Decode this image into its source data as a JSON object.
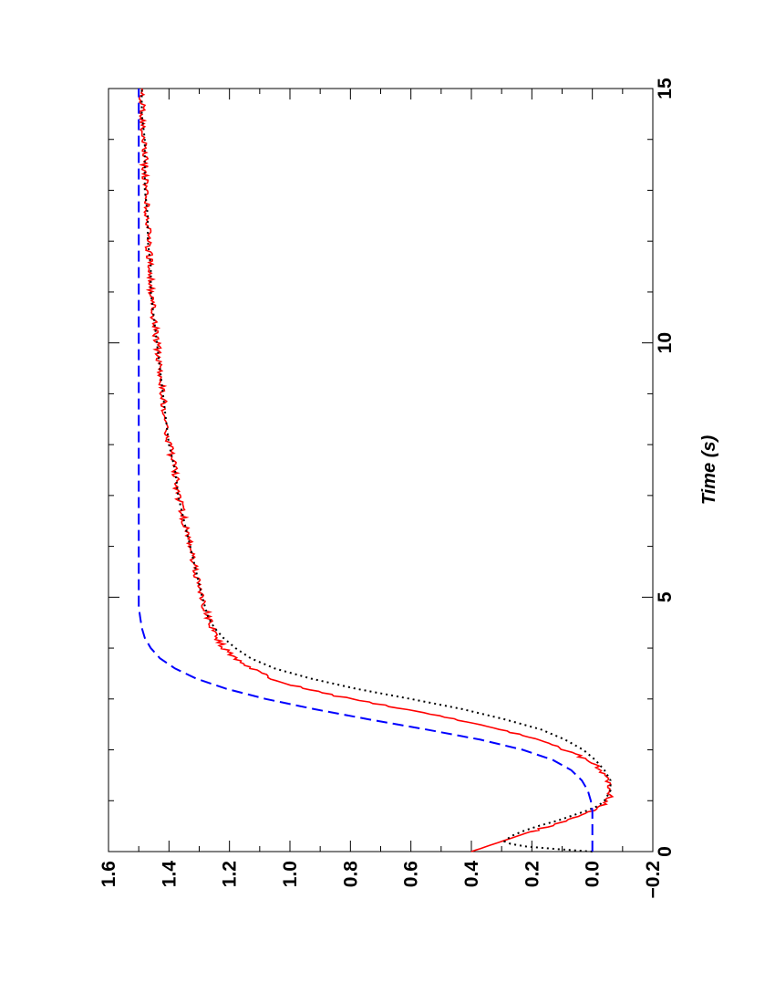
{
  "chart_data": {
    "type": "line",
    "orientation": "rotated-90",
    "title": "",
    "xlabel": "Time (s)",
    "ylabel": "",
    "xlim": [
      0,
      15
    ],
    "ylim": [
      -0.2,
      1.6
    ],
    "x_ticks": [
      0,
      5,
      10,
      15
    ],
    "x_tick_labels": [
      "0",
      "5",
      "10",
      "15"
    ],
    "y_ticks": [
      -0.2,
      0.0,
      0.2,
      0.4,
      0.6,
      0.8,
      1.0,
      1.2,
      1.4,
      1.6
    ],
    "y_tick_labels": [
      "−0.2",
      "0.0",
      "0.2",
      "0.4",
      "0.6",
      "0.8",
      "1.0",
      "1.2",
      "1.4",
      "1.6"
    ],
    "grid": false,
    "legend": "none",
    "series": [
      {
        "style": "solid",
        "color": "#ff0000",
        "noisy": true,
        "x": [
          0,
          0.1,
          0.2,
          0.3,
          0.4,
          0.5,
          0.6,
          0.7,
          0.8,
          0.9,
          1.0,
          1.1,
          1.2,
          1.3,
          1.4,
          1.5,
          1.6,
          1.7,
          1.8,
          1.9,
          2.0,
          2.2,
          2.4,
          2.6,
          2.8,
          3.0,
          3.2,
          3.4,
          3.6,
          3.8,
          4.0,
          4.2,
          4.4,
          4.6,
          4.8,
          5.0,
          5.5,
          6.0,
          6.5,
          7.0,
          7.5,
          8.0,
          8.5,
          9.0,
          9.5,
          10.0,
          10.5,
          11.0,
          11.5,
          12.0,
          12.5,
          13.0,
          13.5,
          14.0,
          14.5,
          15.0
        ],
        "y": [
          0.4,
          0.35,
          0.3,
          0.25,
          0.2,
          0.14,
          0.09,
          0.04,
          0.0,
          -0.03,
          -0.05,
          -0.06,
          -0.06,
          -0.06,
          -0.05,
          -0.04,
          -0.03,
          -0.01,
          0.02,
          0.05,
          0.09,
          0.18,
          0.3,
          0.45,
          0.62,
          0.8,
          0.95,
          1.06,
          1.13,
          1.18,
          1.22,
          1.24,
          1.26,
          1.27,
          1.28,
          1.29,
          1.31,
          1.33,
          1.35,
          1.37,
          1.38,
          1.4,
          1.41,
          1.42,
          1.43,
          1.44,
          1.45,
          1.46,
          1.46,
          1.47,
          1.47,
          1.48,
          1.48,
          1.48,
          1.49,
          1.49
        ]
      },
      {
        "style": "dotted",
        "color": "#000000",
        "x": [
          0,
          0.05,
          0.1,
          0.15,
          0.2,
          0.3,
          0.4,
          0.5,
          0.6,
          0.7,
          0.8,
          0.9,
          1.0,
          1.2,
          1.4,
          1.6,
          1.8,
          2.0,
          2.2,
          2.4,
          2.6,
          2.8,
          3.0,
          3.2,
          3.4,
          3.6,
          3.8,
          4.0,
          4.2,
          4.4,
          4.6,
          4.8,
          5.0,
          5.5,
          6.0,
          6.5,
          7.0,
          7.5,
          8.0,
          8.5,
          9.0,
          9.5,
          10.0,
          10.5,
          11.0,
          11.5,
          12.0,
          12.5,
          13.0,
          13.5,
          14.0,
          14.5,
          15.0
        ],
        "y": [
          0.0,
          0.12,
          0.22,
          0.27,
          0.29,
          0.27,
          0.23,
          0.18,
          0.12,
          0.07,
          0.02,
          -0.02,
          -0.04,
          -0.06,
          -0.06,
          -0.04,
          -0.01,
          0.03,
          0.09,
          0.17,
          0.29,
          0.43,
          0.6,
          0.78,
          0.93,
          1.05,
          1.13,
          1.18,
          1.22,
          1.25,
          1.27,
          1.28,
          1.29,
          1.31,
          1.33,
          1.35,
          1.37,
          1.38,
          1.4,
          1.41,
          1.42,
          1.43,
          1.44,
          1.45,
          1.46,
          1.46,
          1.47,
          1.47,
          1.48,
          1.48,
          1.48,
          1.49,
          1.49
        ]
      },
      {
        "style": "dashed",
        "color": "#0000ff",
        "x": [
          0,
          0.5,
          0.8,
          1.0,
          1.2,
          1.4,
          1.6,
          1.8,
          2.0,
          2.2,
          2.4,
          2.6,
          2.8,
          3.0,
          3.2,
          3.4,
          3.6,
          3.8,
          4.0,
          4.2,
          4.4,
          4.6,
          4.8,
          5.0,
          6.0,
          8.0,
          10.0,
          12.0,
          15.0
        ],
        "y": [
          0.0,
          0.0,
          0.0,
          0.005,
          0.015,
          0.035,
          0.07,
          0.13,
          0.23,
          0.37,
          0.55,
          0.74,
          0.92,
          1.08,
          1.21,
          1.31,
          1.38,
          1.43,
          1.46,
          1.48,
          1.49,
          1.495,
          1.5,
          1.5,
          1.5,
          1.5,
          1.5,
          1.5,
          1.5
        ]
      }
    ]
  }
}
